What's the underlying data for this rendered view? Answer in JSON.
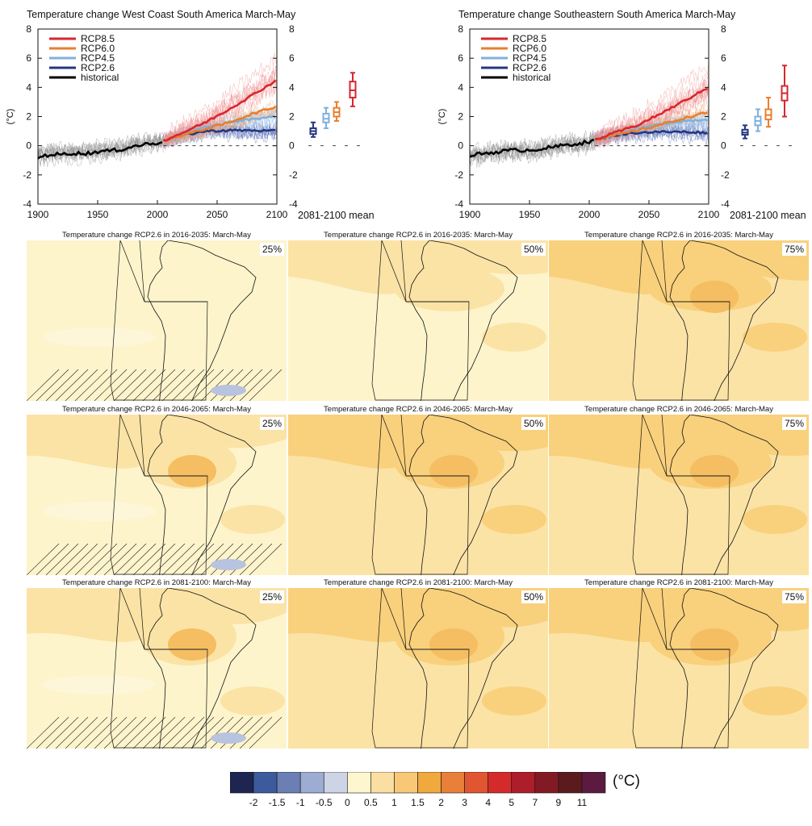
{
  "timeseries": [
    {
      "title": "Temperature change West Coast South America March-May",
      "ylabel": "(°C)",
      "mean_label": "2081-2100 mean"
    },
    {
      "title": "Temperature change Southeastern South America March-May",
      "ylabel": "(°C)",
      "mean_label": "2081-2100 mean"
    }
  ],
  "legend": [
    {
      "name": "RCP8.5",
      "color": "#d7272d"
    },
    {
      "name": "RCP6.0",
      "color": "#ea7e2e"
    },
    {
      "name": "RCP4.5",
      "color": "#7fb0dd"
    },
    {
      "name": "RCP2.6",
      "color": "#25367f"
    },
    {
      "name": "historical",
      "color": "#000000"
    }
  ],
  "map_rows": [
    {
      "title": "Temperature change RCP2.6 in 2016-2035: March-May"
    },
    {
      "title": "Temperature change RCP2.6 in 2046-2065: March-May"
    },
    {
      "title": "Temperature change RCP2.6 in 2081-2100: March-May"
    }
  ],
  "percentiles": [
    "25%",
    "50%",
    "75%"
  ],
  "colorbar": {
    "unit": "(°C)",
    "colors": [
      "#1d2550",
      "#3d5a9c",
      "#6b7fb5",
      "#9cacd2",
      "#cdd4e6",
      "#fdf6cf",
      "#fbdea1",
      "#f8c877",
      "#f0a93c",
      "#e8803a",
      "#e25531",
      "#d42a2b",
      "#ad1d2a",
      "#821a24",
      "#5b1b1d",
      "#5b1a3f"
    ],
    "ticks": [
      "-2",
      "-1.5",
      "-1",
      "-0.5",
      "0",
      "0.5",
      "1",
      "1.5",
      "2",
      "3",
      "4",
      "5",
      "7",
      "9",
      "11"
    ]
  },
  "chart_data": [
    {
      "type": "line",
      "title": "Temperature change West Coast South America March-May",
      "ylabel": "(°C)",
      "xlim": [
        1900,
        2100
      ],
      "ylim": [
        -4,
        8
      ],
      "xticks": [
        1900,
        1950,
        2000,
        2050,
        2100
      ],
      "yticks": [
        -4,
        -2,
        0,
        2,
        4,
        6,
        8
      ],
      "series": [
        {
          "name": "historical",
          "x": [
            1900,
            1905,
            1910,
            1920,
            1930,
            1940,
            1950,
            1960,
            1970,
            1980,
            1990,
            2000,
            2005
          ],
          "y": [
            -0.8,
            -0.7,
            -0.6,
            -0.6,
            -0.5,
            -0.55,
            -0.4,
            -0.35,
            -0.25,
            -0.05,
            0.1,
            0.2,
            0.35
          ]
        },
        {
          "name": "RCP2.6",
          "x": [
            2005,
            2020,
            2040,
            2060,
            2080,
            2100
          ],
          "y": [
            0.35,
            0.7,
            1.0,
            1.05,
            1.05,
            1.0
          ]
        },
        {
          "name": "RCP4.5",
          "x": [
            2005,
            2020,
            2040,
            2060,
            2080,
            2100
          ],
          "y": [
            0.35,
            0.75,
            1.25,
            1.6,
            1.85,
            2.0
          ]
        },
        {
          "name": "RCP6.0",
          "x": [
            2005,
            2020,
            2040,
            2060,
            2080,
            2100
          ],
          "y": [
            0.35,
            0.7,
            1.15,
            1.6,
            2.2,
            2.7
          ]
        },
        {
          "name": "RCP8.5",
          "x": [
            2005,
            2020,
            2040,
            2060,
            2080,
            2100
          ],
          "y": [
            0.35,
            0.85,
            1.6,
            2.5,
            3.5,
            4.5
          ]
        }
      ],
      "mean_2081_2100": [
        {
          "name": "RCP2.6",
          "median": 1.0,
          "q1": 0.8,
          "q3": 1.2,
          "min": 0.6,
          "max": 1.6
        },
        {
          "name": "RCP4.5",
          "median": 1.85,
          "q1": 1.6,
          "q3": 2.2,
          "min": 1.2,
          "max": 2.6
        },
        {
          "name": "RCP6.0",
          "median": 2.3,
          "q1": 2.0,
          "q3": 2.6,
          "min": 1.7,
          "max": 3.0
        },
        {
          "name": "RCP8.5",
          "median": 3.8,
          "q1": 3.3,
          "q3": 4.4,
          "min": 2.7,
          "max": 5.0
        }
      ]
    },
    {
      "type": "line",
      "title": "Temperature change Southeastern South America March-May",
      "ylabel": "(°C)",
      "xlim": [
        1900,
        2100
      ],
      "ylim": [
        -4,
        8
      ],
      "xticks": [
        1900,
        1950,
        2000,
        2050,
        2100
      ],
      "yticks": [
        -4,
        -2,
        0,
        2,
        4,
        6,
        8
      ],
      "series": [
        {
          "name": "historical",
          "x": [
            1900,
            1905,
            1910,
            1920,
            1930,
            1940,
            1950,
            1960,
            1970,
            1980,
            1990,
            2000,
            2005
          ],
          "y": [
            -0.7,
            -0.6,
            -0.55,
            -0.45,
            -0.35,
            -0.3,
            -0.3,
            -0.2,
            -0.1,
            0.05,
            0.15,
            0.25,
            0.4
          ]
        },
        {
          "name": "RCP2.6",
          "x": [
            2005,
            2020,
            2040,
            2060,
            2080,
            2100
          ],
          "y": [
            0.4,
            0.7,
            0.9,
            0.95,
            0.95,
            0.9
          ]
        },
        {
          "name": "RCP4.5",
          "x": [
            2005,
            2020,
            2040,
            2060,
            2080,
            2100
          ],
          "y": [
            0.4,
            0.75,
            1.15,
            1.5,
            1.7,
            1.8
          ]
        },
        {
          "name": "RCP6.0",
          "x": [
            2005,
            2020,
            2040,
            2060,
            2080,
            2100
          ],
          "y": [
            0.4,
            0.7,
            1.05,
            1.45,
            1.9,
            2.3
          ]
        },
        {
          "name": "RCP8.5",
          "x": [
            2005,
            2020,
            2040,
            2060,
            2080,
            2100
          ],
          "y": [
            0.4,
            0.85,
            1.4,
            2.2,
            3.1,
            4.0
          ]
        }
      ],
      "mean_2081_2100": [
        {
          "name": "RCP2.6",
          "median": 0.9,
          "q1": 0.75,
          "q3": 1.1,
          "min": 0.5,
          "max": 1.4
        },
        {
          "name": "RCP4.5",
          "median": 1.7,
          "q1": 1.4,
          "q3": 2.0,
          "min": 1.0,
          "max": 2.5
        },
        {
          "name": "RCP6.0",
          "median": 2.1,
          "q1": 1.8,
          "q3": 2.5,
          "min": 1.3,
          "max": 3.3
        },
        {
          "name": "RCP8.5",
          "median": 3.6,
          "q1": 3.1,
          "q3": 4.1,
          "min": 2.0,
          "max": 5.5
        }
      ]
    }
  ]
}
